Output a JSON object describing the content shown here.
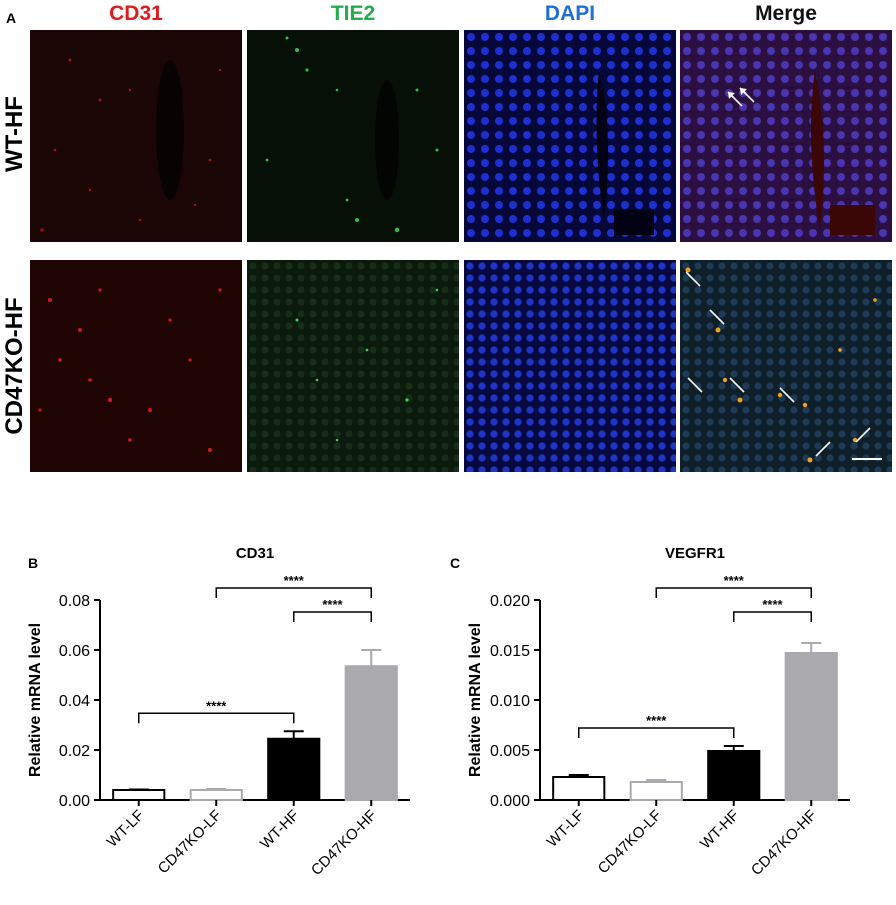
{
  "figure": {
    "panel_a_label": "A",
    "columns": [
      "CD31",
      "TIE2",
      "DAPI",
      "Merge"
    ],
    "column_colors": [
      "#e01b1b",
      "#1fae4a",
      "#1e6fd6",
      "#111111"
    ],
    "rows": [
      "WT-HF",
      "CD47KO-HF"
    ]
  },
  "chart_data": [
    {
      "panel": "B",
      "type": "bar",
      "title": "CD31",
      "ylabel": "Relative mRNA level",
      "categories": [
        "WT-LF",
        "CD47KO-LF",
        "WT-HF",
        "CD47KO-HF"
      ],
      "values": [
        0.004,
        0.004,
        0.0245,
        0.0535
      ],
      "errors": [
        0.0002,
        0.0004,
        0.003,
        0.0065
      ],
      "ylim": [
        0,
        0.08
      ],
      "yticks": [
        "0.00",
        "0.02",
        "0.04",
        "0.06",
        "0.08"
      ],
      "bar_styles": [
        "white-black-outline",
        "white-gray-outline",
        "black",
        "gray"
      ],
      "significance": [
        {
          "from": "WT-LF",
          "to": "WT-HF",
          "label": "****"
        },
        {
          "from": "CD47KO-LF",
          "to": "CD47KO-HF",
          "label": "****"
        },
        {
          "from": "WT-HF",
          "to": "CD47KO-HF",
          "label": "****"
        }
      ]
    },
    {
      "panel": "C",
      "type": "bar",
      "title": "VEGFR1",
      "ylabel": "Relative mRNA level",
      "categories": [
        "WT-LF",
        "CD47KO-LF",
        "WT-HF",
        "CD47KO-HF"
      ],
      "values": [
        0.0023,
        0.0018,
        0.0049,
        0.0147
      ],
      "errors": [
        0.0002,
        0.0002,
        0.0005,
        0.001
      ],
      "ylim": [
        0,
        0.02
      ],
      "yticks": [
        "0.000",
        "0.005",
        "0.010",
        "0.015",
        "0.020"
      ],
      "bar_styles": [
        "white-black-outline",
        "white-gray-outline",
        "black",
        "gray"
      ],
      "significance": [
        {
          "from": "WT-LF",
          "to": "WT-HF",
          "label": "****"
        },
        {
          "from": "CD47KO-LF",
          "to": "CD47KO-HF",
          "label": "****"
        },
        {
          "from": "WT-HF",
          "to": "CD47KO-HF",
          "label": "****"
        }
      ]
    }
  ]
}
